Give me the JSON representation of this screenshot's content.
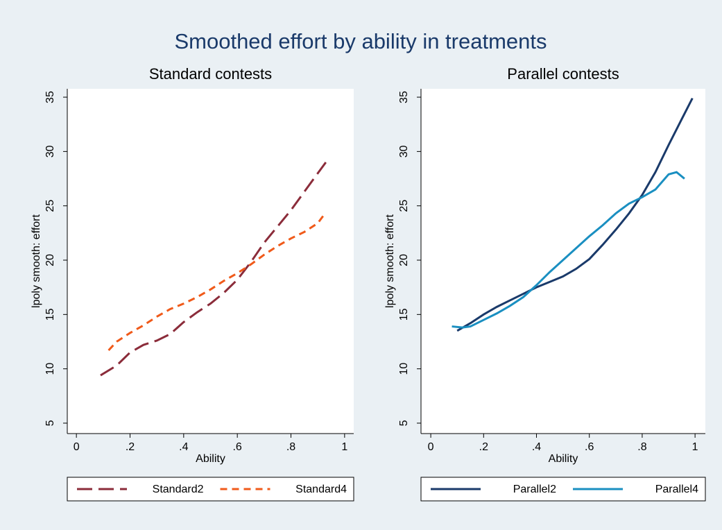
{
  "title": "Smoothed effort by ability in treatments",
  "chart_data": [
    {
      "type": "line",
      "title": "Standard contests",
      "x_label": "Ability",
      "y_label": "lpoly smooth: effort",
      "xlim": [
        -0.034,
        1.034
      ],
      "ylim": [
        4.04,
        35.77
      ],
      "xticks": [
        0,
        {
          "value": 0.2,
          "label": ".2"
        },
        {
          "value": 0.4,
          "label": ".4"
        },
        {
          "value": 0.6,
          "label": ".6"
        },
        {
          "value": 0.8,
          "label": ".8"
        },
        1
      ],
      "yticks": [
        5,
        10,
        15,
        20,
        25,
        30,
        35
      ],
      "series": [
        {
          "name": "Standard2",
          "color": "#8b2c3a",
          "dash": "long",
          "x": [
            0.09,
            0.15,
            0.2,
            0.25,
            0.3,
            0.35,
            0.4,
            0.45,
            0.5,
            0.55,
            0.6,
            0.65,
            0.7,
            0.75,
            0.8,
            0.85,
            0.9,
            0.93
          ],
          "values": [
            9.4,
            10.3,
            11.5,
            12.2,
            12.6,
            13.2,
            14.3,
            15.2,
            16.0,
            17.0,
            18.2,
            19.8,
            21.6,
            23.1,
            24.6,
            26.3,
            28.0,
            29.0
          ]
        },
        {
          "name": "Standard4",
          "color": "#f05a1a",
          "dash": "short",
          "x": [
            0.12,
            0.15,
            0.2,
            0.25,
            0.3,
            0.35,
            0.4,
            0.45,
            0.5,
            0.55,
            0.6,
            0.65,
            0.7,
            0.75,
            0.8,
            0.85,
            0.9,
            0.93
          ],
          "values": [
            11.7,
            12.5,
            13.3,
            14.0,
            14.8,
            15.5,
            16.0,
            16.6,
            17.3,
            18.1,
            18.8,
            19.6,
            20.5,
            21.3,
            22.0,
            22.6,
            23.4,
            24.4
          ]
        }
      ]
    },
    {
      "type": "line",
      "title": "Parallel contests",
      "x_label": "Ability",
      "y_label": "lpoly smooth: effort",
      "xlim": [
        -0.037,
        1.039
      ],
      "ylim": [
        4.04,
        35.77
      ],
      "xticks": [
        0,
        {
          "value": 0.2,
          "label": ".2"
        },
        {
          "value": 0.4,
          "label": ".4"
        },
        {
          "value": 0.6,
          "label": ".6"
        },
        {
          "value": 0.8,
          "label": ".8"
        },
        1
      ],
      "yticks": [
        5,
        10,
        15,
        20,
        25,
        30,
        35
      ],
      "series": [
        {
          "name": "Parallel2",
          "color": "#1a3a6a",
          "dash": "solid",
          "x": [
            0.1,
            0.15,
            0.2,
            0.25,
            0.3,
            0.35,
            0.4,
            0.45,
            0.5,
            0.55,
            0.6,
            0.65,
            0.7,
            0.75,
            0.8,
            0.85,
            0.9,
            0.95,
            0.99
          ],
          "values": [
            13.5,
            14.2,
            15.0,
            15.7,
            16.3,
            16.9,
            17.5,
            18.0,
            18.5,
            19.2,
            20.1,
            21.4,
            22.8,
            24.3,
            26.0,
            28.1,
            30.6,
            33.0,
            34.9
          ]
        },
        {
          "name": "Parallel4",
          "color": "#1a8fc1",
          "dash": "solid",
          "x": [
            0.08,
            0.12,
            0.15,
            0.2,
            0.25,
            0.3,
            0.35,
            0.4,
            0.45,
            0.5,
            0.55,
            0.6,
            0.65,
            0.7,
            0.75,
            0.8,
            0.85,
            0.9,
            0.93,
            0.96
          ],
          "values": [
            13.9,
            13.8,
            13.9,
            14.5,
            15.1,
            15.8,
            16.6,
            17.7,
            18.9,
            20.0,
            21.1,
            22.2,
            23.2,
            24.3,
            25.2,
            25.8,
            26.5,
            27.9,
            28.1,
            27.5
          ]
        }
      ]
    }
  ]
}
